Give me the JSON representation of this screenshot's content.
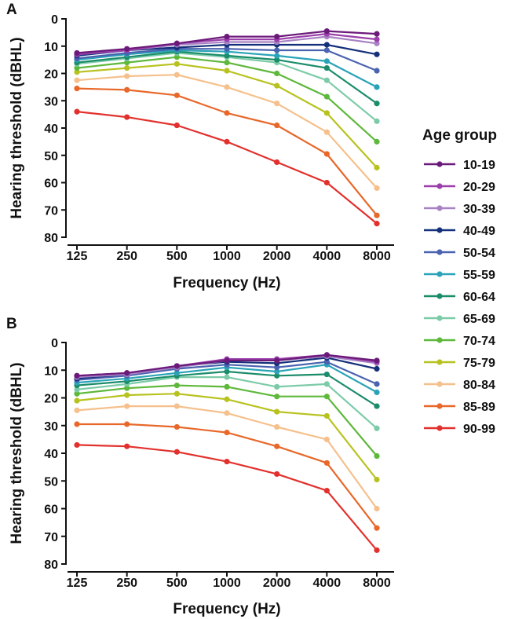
{
  "chart_data": [
    {
      "type": "line",
      "panel_label": "A",
      "xlabel": "Frequency (Hz)",
      "ylabel": "Hearing threshold (dBHL)",
      "categories": [
        "125",
        "250",
        "500",
        "1000",
        "2000",
        "4000",
        "8000"
      ],
      "y_ticks": [
        "0",
        "10",
        "20",
        "30",
        "40",
        "50",
        "60",
        "70",
        "80"
      ],
      "ylim": [
        0,
        80
      ],
      "y_inverted": true,
      "grid": false,
      "series": [
        {
          "name": "10-19",
          "color": "#6b1a7a",
          "values": [
            12.5,
            11,
            9,
            6.5,
            6.5,
            4.5,
            5.5
          ]
        },
        {
          "name": "20-29",
          "color": "#9b3fab",
          "values": [
            13,
            11.5,
            9,
            7.5,
            7.5,
            5.5,
            7.5
          ]
        },
        {
          "name": "30-39",
          "color": "#a882c4",
          "values": [
            13,
            11.5,
            9.5,
            8.5,
            8.5,
            6.5,
            9
          ]
        },
        {
          "name": "40-49",
          "color": "#15307a",
          "values": [
            13.5,
            11.5,
            10.5,
            9.5,
            9.5,
            9.5,
            13
          ]
        },
        {
          "name": "50-54",
          "color": "#4a63b0",
          "values": [
            14.5,
            12.5,
            11,
            11,
            11.5,
            11.5,
            19
          ]
        },
        {
          "name": "55-59",
          "color": "#2aa3b8",
          "values": [
            15,
            13,
            11.5,
            12,
            13.5,
            15.5,
            25
          ]
        },
        {
          "name": "60-64",
          "color": "#1b8c6a",
          "values": [
            16,
            14,
            12,
            13.5,
            15,
            18,
            31
          ]
        },
        {
          "name": "65-69",
          "color": "#7ccba8",
          "values": [
            16.5,
            14.5,
            12.5,
            14,
            16,
            22.5,
            37.5
          ]
        },
        {
          "name": "70-74",
          "color": "#5eb83b",
          "values": [
            18,
            16,
            14,
            16,
            20,
            28.5,
            45
          ]
        },
        {
          "name": "75-79",
          "color": "#b8c21f",
          "values": [
            19.5,
            18,
            16.5,
            19,
            24.5,
            34.5,
            54.5
          ]
        },
        {
          "name": "80-84",
          "color": "#f5c08c",
          "values": [
            22.5,
            21,
            20.5,
            25,
            31,
            41.5,
            62
          ]
        },
        {
          "name": "85-89",
          "color": "#e8682a",
          "values": [
            25.5,
            26,
            28,
            34.5,
            39,
            49.5,
            72
          ]
        },
        {
          "name": "90-99",
          "color": "#e2312d",
          "values": [
            34,
            36,
            39,
            45,
            52.5,
            60,
            75
          ]
        }
      ]
    },
    {
      "type": "line",
      "panel_label": "B",
      "xlabel": "Frequency (Hz)",
      "ylabel": "Hearing threshold (dBHL)",
      "categories": [
        "125",
        "250",
        "500",
        "1000",
        "2000",
        "4000",
        "8000"
      ],
      "y_ticks": [
        "0",
        "10",
        "20",
        "30",
        "40",
        "50",
        "60",
        "70",
        "80"
      ],
      "ylim": [
        0,
        80
      ],
      "y_inverted": true,
      "grid": false,
      "series": [
        {
          "name": "10-19",
          "color": "#6b1a7a",
          "values": [
            12,
            11,
            8.5,
            6.5,
            6.5,
            4.5,
            6.5
          ]
        },
        {
          "name": "20-29",
          "color": "#9b3fab",
          "values": [
            12,
            11,
            8.5,
            6,
            6,
            4.5,
            7
          ]
        },
        {
          "name": "30-39",
          "color": "#a882c4",
          "values": [
            12.5,
            11.5,
            9,
            6.5,
            6.5,
            5,
            7.5
          ]
        },
        {
          "name": "40-49",
          "color": "#15307a",
          "values": [
            13,
            11.5,
            8.5,
            7,
            7.5,
            5.5,
            9.5
          ]
        },
        {
          "name": "50-54",
          "color": "#4a63b0",
          "values": [
            13.5,
            12,
            9.5,
            8,
            9,
            7,
            15
          ]
        },
        {
          "name": "55-59",
          "color": "#2aa3b8",
          "values": [
            14.5,
            13,
            11,
            9,
            10.5,
            8,
            18
          ]
        },
        {
          "name": "60-64",
          "color": "#1b8c6a",
          "values": [
            15.5,
            14,
            12,
            10.5,
            12,
            11.5,
            23
          ]
        },
        {
          "name": "65-69",
          "color": "#7ccba8",
          "values": [
            17,
            15,
            12.5,
            12.5,
            16,
            15,
            31
          ]
        },
        {
          "name": "70-74",
          "color": "#5eb83b",
          "values": [
            18.5,
            16.5,
            15.5,
            16,
            19.5,
            19.5,
            41
          ]
        },
        {
          "name": "75-79",
          "color": "#b8c21f",
          "values": [
            21,
            19,
            18.5,
            20.5,
            25,
            26.5,
            49.5
          ]
        },
        {
          "name": "80-84",
          "color": "#f5c08c",
          "values": [
            24.5,
            23,
            23,
            25.5,
            30.5,
            35,
            60
          ]
        },
        {
          "name": "85-89",
          "color": "#e8682a",
          "values": [
            29.5,
            29.5,
            30.5,
            32.5,
            37.5,
            43.5,
            67
          ]
        },
        {
          "name": "90-99",
          "color": "#e2312d",
          "values": [
            37,
            37.5,
            39.5,
            43,
            47.5,
            53.5,
            75
          ]
        }
      ]
    }
  ],
  "legend": {
    "title": "Age group",
    "placement": "right"
  }
}
